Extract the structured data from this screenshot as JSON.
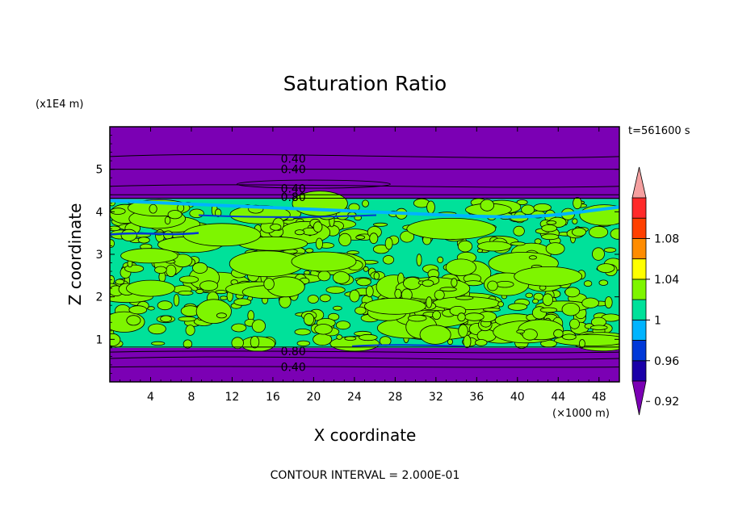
{
  "chart_data": {
    "type": "heatmap",
    "title": "Saturation Ratio",
    "xlabel": "X coordinate",
    "ylabel": "Z coordinate",
    "x_unit": "(×1000 m)",
    "y_unit": "(x1E4 m)",
    "time_label": "t=561600 s",
    "footer": "CONTOUR INTERVAL = 2.000E-01",
    "xlim": [
      0,
      50
    ],
    "ylim": [
      0,
      6
    ],
    "x_ticks": [
      "4",
      "8",
      "12",
      "16",
      "20",
      "24",
      "28",
      "32",
      "36",
      "40",
      "44",
      "48"
    ],
    "x_tick_values": [
      4,
      8,
      12,
      16,
      20,
      24,
      28,
      32,
      36,
      40,
      44,
      48
    ],
    "y_ticks": [
      "1",
      "2",
      "3",
      "4",
      "5"
    ],
    "y_tick_values": [
      1,
      2,
      3,
      4,
      5
    ],
    "contour_labels": [
      {
        "text": "0.40",
        "x": 18,
        "z": 5.25
      },
      {
        "text": "0.40",
        "x": 18,
        "z": 5.0
      },
      {
        "text": "0.40",
        "x": 18,
        "z": 4.55
      },
      {
        "text": "0.80",
        "x": 18,
        "z": 4.35
      },
      {
        "text": "0.80",
        "x": 18,
        "z": 0.72
      },
      {
        "text": "0.40",
        "x": 18,
        "z": 0.35
      }
    ],
    "colorbar": {
      "labels": [
        "1.08",
        "1.04",
        "1",
        "0.96",
        "0.92"
      ],
      "colors": [
        "#7b00b4",
        "#1a00a8",
        "#0038d8",
        "#00b4ff",
        "#00e19a",
        "#7ef500",
        "#ffff00",
        "#ff8c00",
        "#ff4000",
        "#ff2a2a",
        "#f5a0a0"
      ]
    },
    "regions": {
      "upper_dry": {
        "z_min": 4.3,
        "z_max": 6.0,
        "color": "#7b00b4"
      },
      "cloud_layer": {
        "z_min": 0.8,
        "z_max": 4.3,
        "colors": [
          "#00e19a",
          "#7ef500"
        ]
      },
      "lower_dry": {
        "z_min": 0.0,
        "z_max": 0.8,
        "color": "#7b00b4"
      }
    }
  }
}
